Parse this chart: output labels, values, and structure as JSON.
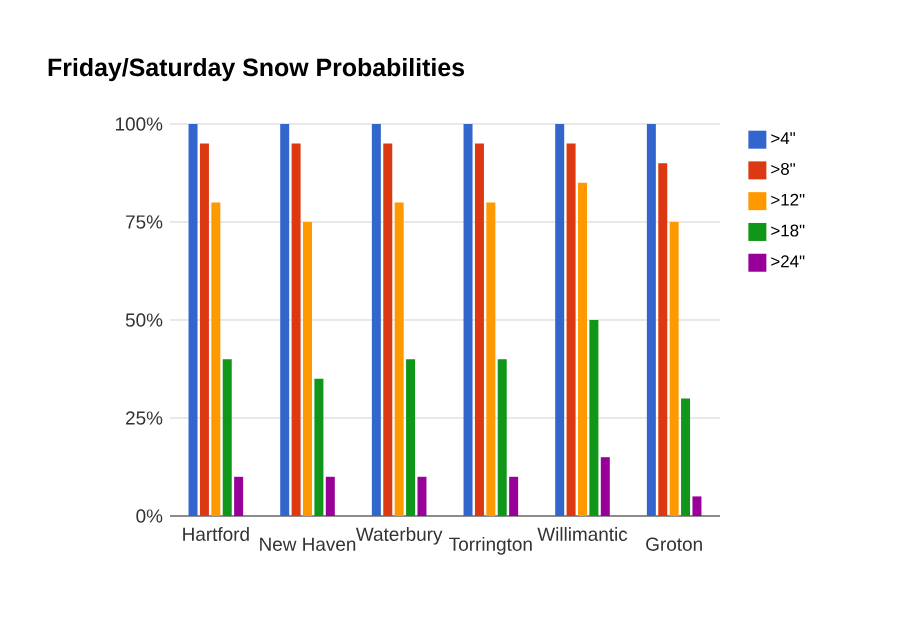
{
  "chart_data": {
    "type": "bar",
    "title": "Friday/Saturday Snow Probabilities",
    "categories": [
      "Hartford",
      "New Haven",
      "Waterbury",
      "Torrington",
      "Willimantic",
      "Groton"
    ],
    "series": [
      {
        "name": ">4\"",
        "color": "#3366cc",
        "values": [
          100,
          100,
          100,
          100,
          100,
          100
        ]
      },
      {
        "name": ">8\"",
        "color": "#dc3912",
        "values": [
          95,
          95,
          95,
          95,
          95,
          90
        ]
      },
      {
        "name": ">12\"",
        "color": "#ff9900",
        "values": [
          80,
          75,
          80,
          80,
          85,
          75
        ]
      },
      {
        "name": ">18\"",
        "color": "#109618",
        "values": [
          40,
          35,
          40,
          40,
          50,
          30
        ]
      },
      {
        "name": ">24\"",
        "color": "#990099",
        "values": [
          10,
          10,
          10,
          10,
          15,
          5
        ]
      }
    ],
    "ylim": [
      0,
      100
    ],
    "yticks": [
      {
        "value": 0,
        "label": "0%"
      },
      {
        "value": 25,
        "label": "25%"
      },
      {
        "value": 50,
        "label": "50%"
      },
      {
        "value": 75,
        "label": "75%"
      },
      {
        "value": 100,
        "label": "100%"
      }
    ],
    "grid": "y",
    "legend": "right"
  }
}
